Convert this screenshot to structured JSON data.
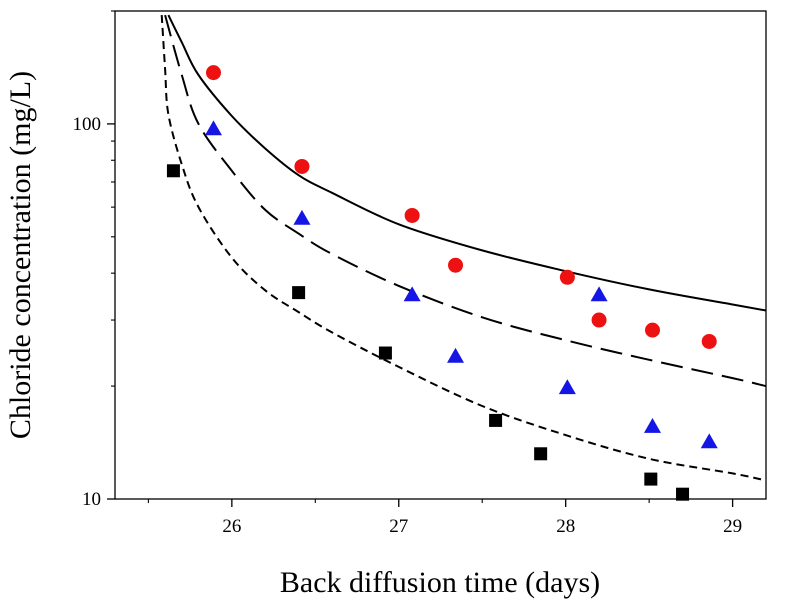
{
  "chart_data": {
    "type": "scatter",
    "title": "",
    "xlabel": "Back diffusion time (days)",
    "ylabel": "Chloride concentration (mg/L)",
    "xlim": [
      25.3,
      29.2
    ],
    "ylim": [
      10,
      200
    ],
    "yscale": "log",
    "grid": false,
    "legend": "none",
    "x_ticks": [
      26,
      27,
      28,
      29
    ],
    "x_tick_labels": [
      "26",
      "27",
      "28",
      "29"
    ],
    "y_ticks": [
      10,
      100
    ],
    "y_tick_labels": [
      "10",
      "100"
    ],
    "series": [
      {
        "name": "circles",
        "marker": "circle",
        "color": "#ee1111",
        "x": [
          25.89,
          26.42,
          27.08,
          27.34,
          28.01,
          28.2,
          28.52,
          28.86
        ],
        "y": [
          137,
          77,
          57,
          42,
          39,
          30,
          28.2,
          26.3
        ]
      },
      {
        "name": "triangles",
        "marker": "triangle",
        "color": "#1515e6",
        "x": [
          25.89,
          26.42,
          27.08,
          27.34,
          28.01,
          28.2,
          28.52,
          28.86
        ],
        "y": [
          97,
          56,
          35,
          24,
          19.8,
          35,
          15.6,
          14.2
        ]
      },
      {
        "name": "squares",
        "marker": "square",
        "color": "#000000",
        "x": [
          25.65,
          26.4,
          26.92,
          27.58,
          27.85,
          28.51,
          28.7
        ],
        "y": [
          75,
          35.5,
          24.5,
          16.2,
          13.2,
          11.3,
          10.3
        ]
      }
    ],
    "curves": [
      {
        "name": "solid-curve",
        "style": "solid",
        "color": "#000000",
        "x": [
          25.62,
          25.7,
          25.8,
          26.0,
          26.2,
          26.4,
          26.6,
          27.0,
          27.5,
          28.0,
          28.5,
          29.0,
          29.2
        ],
        "y": [
          195,
          165,
          135,
          105,
          86,
          73,
          65.5,
          54,
          46,
          40.5,
          36.2,
          33,
          31.8
        ]
      },
      {
        "name": "long-dash-curve",
        "style": "long-dash",
        "color": "#000000",
        "x": [
          25.6,
          25.7,
          25.8,
          26.0,
          26.2,
          26.4,
          26.6,
          27.0,
          27.5,
          28.0,
          28.5,
          29.0,
          29.2
        ],
        "y": [
          195,
          135,
          100,
          75,
          59,
          51,
          45,
          37,
          30.5,
          26.5,
          23.5,
          21,
          20
        ]
      },
      {
        "name": "short-dash-curve",
        "style": "short-dash",
        "color": "#000000",
        "x": [
          25.58,
          25.6,
          25.62,
          25.7,
          25.8,
          26.0,
          26.2,
          26.4,
          26.6,
          27.0,
          27.5,
          28.0,
          28.5,
          29.0,
          29.2
        ],
        "y": [
          195,
          140,
          106,
          78,
          60,
          44,
          36,
          31.5,
          27.8,
          22.5,
          17.7,
          14.8,
          12.8,
          11.7,
          11.2
        ]
      }
    ]
  }
}
